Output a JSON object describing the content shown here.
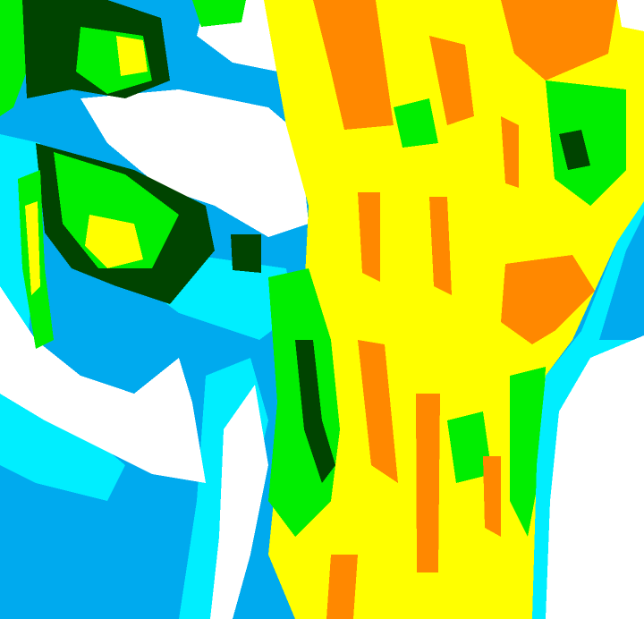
{
  "map": {
    "palette": {
      "sky_blue": "#00aaee",
      "cyan": "#00eeff",
      "white": "#ffffff",
      "green": "#00ee00",
      "dark_green": "#004400",
      "yellow": "#ffff00",
      "orange": "#ff8800"
    }
  }
}
